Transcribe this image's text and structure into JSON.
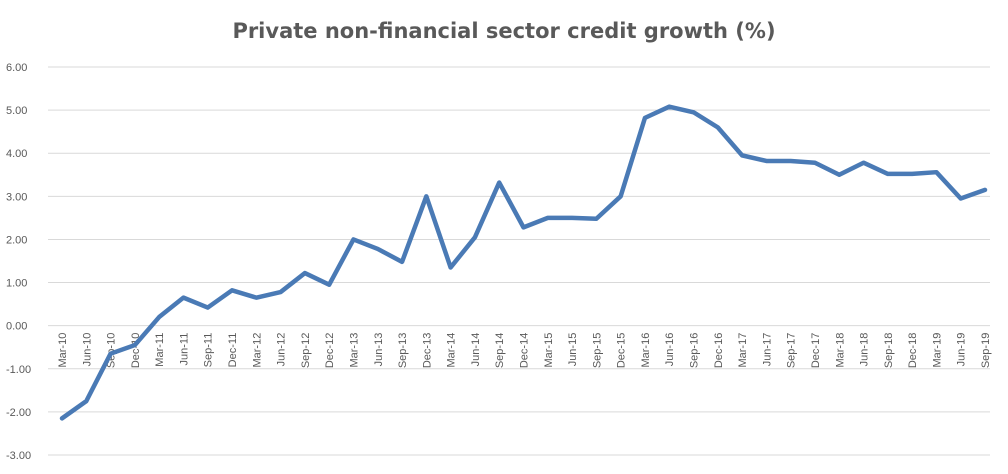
{
  "chart_data": {
    "type": "line",
    "title": "Private non-financial sector credit growth (%)",
    "xlabel": "",
    "ylabel": "",
    "ylim": [
      -3,
      6
    ],
    "yticks": [
      "6.00",
      "5.00",
      "4.00",
      "3.00",
      "2.00",
      "1.00",
      "0.00",
      "-1.00",
      "-2.00",
      "-3.00"
    ],
    "grid": true,
    "legend": "none",
    "line_color": "#4a7ab5",
    "categories": [
      "Mar-10",
      "Jun-10",
      "Sep-10",
      "Dec-10",
      "Mar-11",
      "Jun-11",
      "Sep-11",
      "Dec-11",
      "Mar-12",
      "Jun-12",
      "Sep-12",
      "Dec-12",
      "Mar-13",
      "Jun-13",
      "Sep-13",
      "Dec-13",
      "Mar-14",
      "Jun-14",
      "Sep-14",
      "Dec-14",
      "Mar-15",
      "Jun-15",
      "Sep-15",
      "Dec-15",
      "Mar-16",
      "Jun-16",
      "Sep-16",
      "Dec-16",
      "Mar-17",
      "Jun-17",
      "Sep-17",
      "Dec-17",
      "Mar-18",
      "Jun-18",
      "Sep-18",
      "Dec-18",
      "Mar-19",
      "Jun-19",
      "Sep-19"
    ],
    "series": [
      {
        "values": [
          -2.15,
          -1.75,
          -0.65,
          -0.45,
          0.2,
          0.65,
          0.42,
          0.82,
          0.65,
          0.78,
          1.22,
          0.95,
          2.0,
          1.78,
          1.48,
          3.0,
          1.35,
          2.05,
          3.32,
          2.28,
          2.5,
          2.5,
          2.48,
          3.0,
          4.82,
          5.08,
          4.95,
          4.6,
          3.95,
          3.82,
          3.82,
          3.78,
          3.5,
          3.78,
          3.52,
          3.52,
          3.56,
          2.95,
          3.15
        ]
      }
    ]
  }
}
